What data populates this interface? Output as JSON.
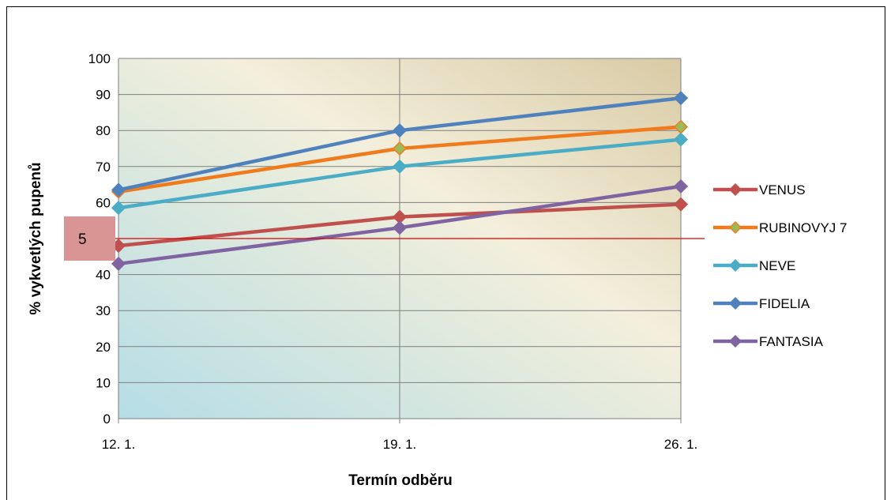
{
  "chart_data": {
    "type": "line",
    "categories": [
      "12. 1.",
      "19. 1.",
      "26. 1."
    ],
    "series": [
      {
        "name": "VENUS",
        "values": [
          48,
          56,
          59.5
        ],
        "color": "#c0504d",
        "marker_fill": "#c0504d"
      },
      {
        "name": "RUBINOVYJ 7",
        "values": [
          63,
          75,
          81
        ],
        "color": "#f07b1c",
        "marker_fill": "#9bbb59"
      },
      {
        "name": "NEVE",
        "values": [
          58.5,
          70,
          77.5
        ],
        "color": "#4bacc6",
        "marker_fill": "#4bacc6"
      },
      {
        "name": "FIDELIA",
        "values": [
          63.5,
          80,
          89
        ],
        "color": "#4f81bd",
        "marker_fill": "#4f81bd"
      },
      {
        "name": "FANTASIA",
        "values": [
          43,
          53,
          64.5
        ],
        "color": "#8064a2",
        "marker_fill": "#8064a2"
      }
    ],
    "xlabel": "Termín odběru",
    "ylabel": "% vykvetlých pupenů",
    "ylim": [
      0,
      100
    ],
    "yticks": [
      0,
      10,
      20,
      30,
      40,
      50,
      60,
      70,
      80,
      90,
      100
    ],
    "grid": true,
    "legend": "right",
    "annotation": {
      "label": "5",
      "y": 50,
      "line_color": "#e00000",
      "box_color": "#d99594"
    }
  }
}
